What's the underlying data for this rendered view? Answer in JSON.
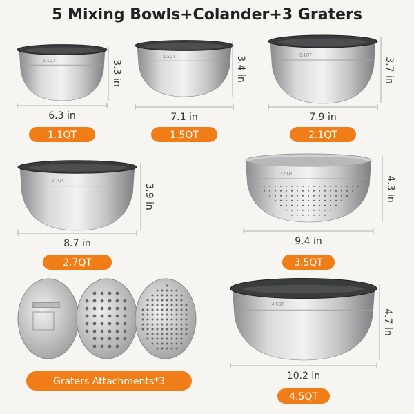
{
  "header": {
    "title": "5 Mixing Bowls+Colander+3 Graters"
  },
  "bowls": [
    {
      "marking": "1.1QT",
      "width": "6.3 in",
      "height": "3.3 in",
      "capacity": "1.1QT"
    },
    {
      "marking": "1.5QT",
      "width": "7.1 in",
      "height": "3.4 in",
      "capacity": "1.5QT"
    },
    {
      "marking": "2.1QT",
      "width": "7.9 in",
      "height": "3.7 in",
      "capacity": "2.1QT"
    },
    {
      "marking": "2.7QT",
      "width": "8.7 in",
      "height": "3.9 in",
      "capacity": "2.7QT"
    },
    {
      "marking": "3.5QT",
      "width": "9.4 in",
      "height": "4.3 in",
      "capacity": "3.5QT"
    },
    {
      "marking": "4.5QT",
      "width": "10.2 in",
      "height": "4.7 in",
      "capacity": "4.5QT"
    }
  ],
  "graters": {
    "label": "Graters Attachments*3"
  }
}
